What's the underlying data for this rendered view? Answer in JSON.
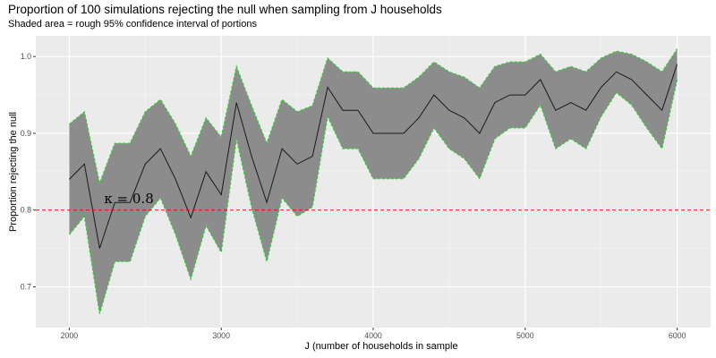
{
  "chart_data": {
    "type": "area",
    "title": "Proportion of 100 simulations rejecting the null when sampling from J households",
    "subtitle": "Shaded area = rough 95% confidence interval of portions",
    "xlabel": "J (number of households in sample",
    "ylabel": "Proportion rejecting the null",
    "xlim": [
      1780,
      6220
    ],
    "ylim": [
      0.647,
      1.027
    ],
    "x_ticks": [
      2000,
      3000,
      4000,
      5000,
      6000
    ],
    "y_ticks": [
      0.7,
      0.8,
      0.9,
      1.0
    ],
    "y_tick_labels": [
      "0.7",
      "0.8",
      "0.9",
      "1.0"
    ],
    "x": [
      2000,
      2100,
      2200,
      2300,
      2400,
      2500,
      2600,
      2700,
      2800,
      2900,
      3000,
      3100,
      3200,
      3300,
      3400,
      3500,
      3600,
      3700,
      3800,
      3900,
      4000,
      4100,
      4200,
      4300,
      4400,
      4500,
      4600,
      4700,
      4800,
      4900,
      5000,
      5100,
      5200,
      5300,
      5400,
      5500,
      5600,
      5700,
      5800,
      5900,
      6000
    ],
    "series": [
      {
        "values": [
          0.84,
          0.86,
          0.75,
          0.81,
          0.81,
          0.86,
          0.88,
          0.84,
          0.79,
          0.85,
          0.82,
          0.94,
          0.87,
          0.81,
          0.88,
          0.86,
          0.87,
          0.96,
          0.93,
          0.93,
          0.9,
          0.9,
          0.9,
          0.92,
          0.95,
          0.93,
          0.92,
          0.9,
          0.94,
          0.95,
          0.95,
          0.97,
          0.93,
          0.94,
          0.93,
          0.96,
          0.98,
          0.97,
          0.95,
          0.93,
          0.99
        ],
        "lower": [
          0.768,
          0.792,
          0.665,
          0.733,
          0.733,
          0.792,
          0.816,
          0.768,
          0.71,
          0.78,
          0.745,
          0.893,
          0.804,
          0.733,
          0.816,
          0.792,
          0.804,
          0.922,
          0.88,
          0.88,
          0.841,
          0.841,
          0.841,
          0.867,
          0.907,
          0.88,
          0.867,
          0.841,
          0.893,
          0.907,
          0.907,
          0.937,
          0.88,
          0.893,
          0.88,
          0.922,
          0.953,
          0.937,
          0.907,
          0.88,
          0.97
        ],
        "upper": [
          0.912,
          0.928,
          0.835,
          0.887,
          0.887,
          0.928,
          0.944,
          0.912,
          0.87,
          0.92,
          0.895,
          0.987,
          0.936,
          0.887,
          0.944,
          0.928,
          0.936,
          0.998,
          0.98,
          0.98,
          0.959,
          0.959,
          0.959,
          0.973,
          0.993,
          0.98,
          0.973,
          0.959,
          0.987,
          0.993,
          0.993,
          1.003,
          0.98,
          0.987,
          0.98,
          0.998,
          1.007,
          1.003,
          0.993,
          0.98,
          1.01
        ]
      }
    ],
    "reference_line": {
      "y": 0.8,
      "color": "#ff0000",
      "style": "dashed"
    },
    "annotation": {
      "text": "κ = 0.8",
      "x": 2230,
      "y": 0.815
    },
    "colors": {
      "panel": "#ebebeb",
      "ribbon_fill": "#8c8c8c",
      "ribbon_edge": "#33cc33",
      "line": "#1a1a1a"
    },
    "grid": true,
    "legend": "none"
  }
}
